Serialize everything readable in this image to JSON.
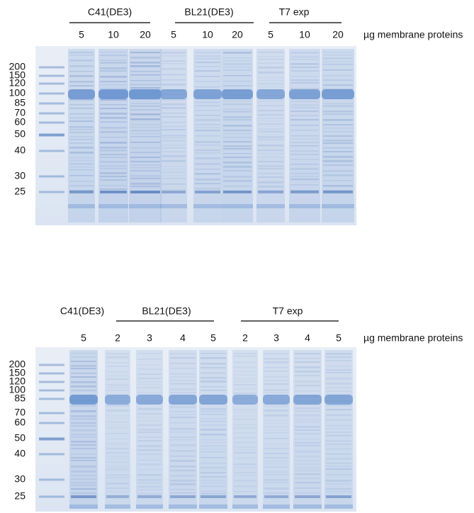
{
  "panels": [
    {
      "groups": [
        "C41(DE3)",
        "BL21(DE3)",
        "T7 exp"
      ],
      "lanes": [
        "5",
        "10",
        "20",
        "5",
        "10",
        "20",
        "5",
        "10",
        "20"
      ],
      "unit": "µg membrane proteins",
      "markers": [
        "200",
        "150",
        "120",
        "100",
        "85",
        "70",
        "60",
        "50",
        "40",
        "30",
        "25"
      ]
    },
    {
      "groups": [
        "C41(DE3)",
        "BL21(DE3)",
        "T7 exp"
      ],
      "lanes": [
        "5",
        "2",
        "3",
        "4",
        "5",
        "2",
        "3",
        "4",
        "5"
      ],
      "unit": "µg membrane proteins",
      "markers": [
        "200",
        "150",
        "120",
        "100",
        "85",
        "70",
        "60",
        "50",
        "40",
        "30",
        "25"
      ]
    }
  ]
}
